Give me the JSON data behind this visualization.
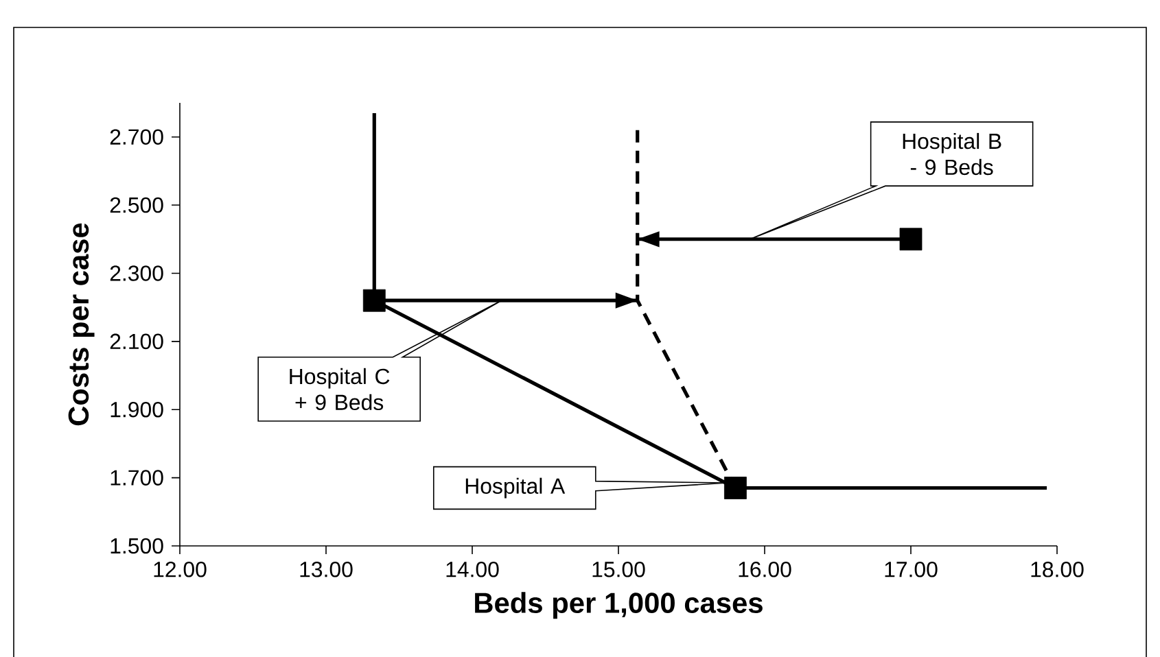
{
  "chart_data": {
    "type": "line",
    "xlabel": "Beds per 1,000 cases",
    "ylabel": "Costs per case",
    "xlim": [
      12,
      18
    ],
    "ylim": [
      1.5,
      2.8
    ],
    "xticks": [
      {
        "value": 12,
        "label": "12.00"
      },
      {
        "value": 13,
        "label": "13.00"
      },
      {
        "value": 14,
        "label": "14.00"
      },
      {
        "value": 15,
        "label": "15.00"
      },
      {
        "value": 16,
        "label": "16.00"
      },
      {
        "value": 17,
        "label": "17.00"
      },
      {
        "value": 18,
        "label": "18.00"
      }
    ],
    "yticks": [
      {
        "value": 1.5,
        "label": "1.500"
      },
      {
        "value": 1.7,
        "label": "1.700"
      },
      {
        "value": 1.9,
        "label": "1.900"
      },
      {
        "value": 2.1,
        "label": "2.100"
      },
      {
        "value": 2.3,
        "label": "2.300"
      },
      {
        "value": 2.5,
        "label": "2.500"
      },
      {
        "value": 2.7,
        "label": "2.700"
      }
    ],
    "series": [
      {
        "color": "#000000",
        "line_style": "solid",
        "x": [
          13.33,
          13.33,
          15.8,
          17.93
        ],
        "values": [
          2.77,
          2.22,
          1.67,
          1.67
        ]
      },
      {
        "color": "#000000",
        "line_style": "dashed",
        "x": [
          15.13,
          15.13,
          15.8
        ],
        "values": [
          2.72,
          2.22,
          1.67
        ]
      },
      {
        "color": "#000000",
        "line_style": "solid",
        "x": [
          13.33,
          15.13
        ],
        "values": [
          2.22,
          2.22
        ]
      },
      {
        "color": "#000000",
        "line_style": "solid",
        "x": [
          17.0,
          15.13
        ],
        "values": [
          2.4,
          2.4
        ]
      },
      {
        "type": "scatter",
        "color": "#000000",
        "marker": "square",
        "x": [
          15.8,
          17.0,
          13.33
        ],
        "values": [
          1.67,
          2.4,
          2.22
        ]
      }
    ],
    "annotations": [
      "Hospital A",
      "Hospital C + 9 Beds",
      "Hospital B - 9 Beds"
    ]
  }
}
